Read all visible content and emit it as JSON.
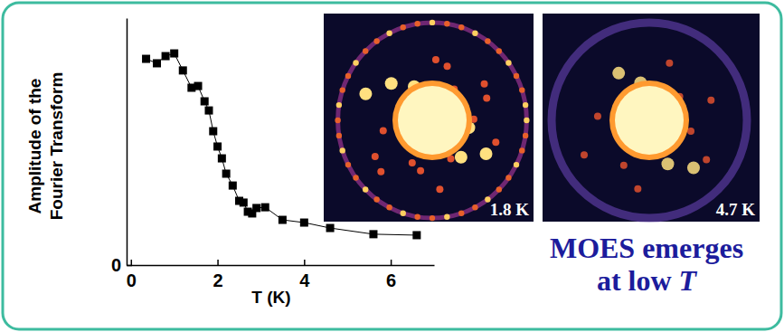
{
  "chart_data": {
    "type": "line",
    "marker": "square",
    "color": "#000000",
    "xlabel": "T (K)",
    "ylabel": [
      "Amplitude of the",
      "Fourier Transform"
    ],
    "x": [
      0.35,
      0.6,
      0.8,
      1.0,
      1.2,
      1.4,
      1.55,
      1.7,
      1.8,
      1.9,
      2.0,
      2.1,
      2.2,
      2.35,
      2.5,
      2.6,
      2.7,
      2.8,
      2.9,
      3.1,
      3.5,
      4.0,
      4.6,
      5.6,
      6.6
    ],
    "values": [
      8.35,
      8.17,
      8.46,
      8.57,
      7.88,
      7.18,
      7.25,
      6.63,
      6.26,
      5.42,
      4.8,
      4.32,
      3.7,
      3.22,
      2.6,
      2.53,
      2.16,
      2.09,
      2.31,
      2.34,
      1.83,
      1.72,
      1.5,
      1.25,
      1.21
    ],
    "xlim": [
      -0.1,
      7.0
    ],
    "xticks": [
      0,
      2,
      4,
      6
    ],
    "ylim": [
      0,
      10
    ],
    "yticks": [
      0
    ],
    "image_labels": [
      "1.8 K",
      "4.7 K"
    ],
    "annotation": [
      "MOES emerges",
      "at low T"
    ]
  }
}
